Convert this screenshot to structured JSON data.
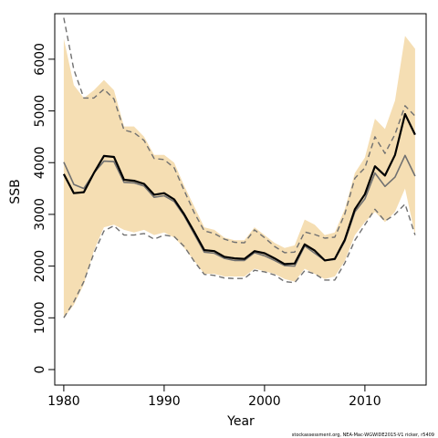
{
  "chart_data": {
    "type": "line",
    "xlabel": "Year",
    "ylabel": "SSB",
    "xlim": [
      1980,
      2015
    ],
    "ylim": [
      0,
      6800
    ],
    "xticks": [
      1980,
      1990,
      2000,
      2010
    ],
    "yticks": [
      0,
      1000,
      2000,
      3000,
      4000,
      5000,
      6000
    ],
    "grid": false,
    "footnote": "stockassessment.org, NEA-Mac-WGWIDE2015-V1 ricker, r5409",
    "colors": {
      "band": "#F5DEB3",
      "estimate": "#000000",
      "median": "#707070",
      "bounds": "#707070"
    },
    "x": [
      1980,
      1981,
      1982,
      1983,
      1984,
      1985,
      1986,
      1987,
      1988,
      1989,
      1990,
      1991,
      1992,
      1993,
      1994,
      1995,
      1996,
      1997,
      1998,
      1999,
      2000,
      2001,
      2002,
      2003,
      2004,
      2005,
      2006,
      2007,
      2008,
      2009,
      2010,
      2011,
      2012,
      2013,
      2014,
      2015
    ],
    "band_upper": [
      6400,
      5500,
      5250,
      5400,
      5600,
      5400,
      4700,
      4700,
      4500,
      4150,
      4150,
      4000,
      3550,
      3150,
      2750,
      2700,
      2550,
      2500,
      2500,
      2750,
      2600,
      2450,
      2350,
      2400,
      2900,
      2800,
      2600,
      2650,
      3100,
      3800,
      4100,
      4850,
      4650,
      5200,
      6450,
      6200
    ],
    "band_lower": [
      1000,
      1250,
      1650,
      2300,
      2750,
      2800,
      2700,
      2650,
      2700,
      2600,
      2650,
      2550,
      2350,
      2100,
      1850,
      1850,
      1800,
      1800,
      1800,
      1950,
      1900,
      1850,
      1750,
      1700,
      1950,
      1850,
      1750,
      1800,
      2100,
      2600,
      2850,
      3050,
      2850,
      3050,
      3500,
      2600
    ],
    "series": [
      {
        "name": "",
        "style": "estimate",
        "values": [
          3780,
          3410,
          3430,
          3800,
          4130,
          4110,
          3670,
          3650,
          3590,
          3380,
          3410,
          3290,
          3000,
          2660,
          2310,
          2290,
          2180,
          2150,
          2140,
          2290,
          2250,
          2150,
          2040,
          2050,
          2420,
          2300,
          2110,
          2140,
          2510,
          3100,
          3390,
          3930,
          3750,
          4150,
          4940,
          4540
        ]
      },
      {
        "name": "",
        "style": "median",
        "values": [
          4010,
          3580,
          3500,
          3800,
          4030,
          4020,
          3620,
          3610,
          3550,
          3330,
          3360,
          3250,
          2970,
          2620,
          2270,
          2250,
          2150,
          2110,
          2110,
          2260,
          2200,
          2110,
          2010,
          2000,
          2390,
          2250,
          2110,
          2130,
          2480,
          3050,
          3300,
          3800,
          3540,
          3720,
          4140,
          3740
        ]
      },
      {
        "name": "",
        "style": "bounds",
        "values": [
          6800,
          5800,
          5250,
          5250,
          5420,
          5230,
          4630,
          4580,
          4430,
          4080,
          4060,
          3900,
          3460,
          3030,
          2680,
          2630,
          2520,
          2460,
          2450,
          2700,
          2550,
          2380,
          2260,
          2270,
          2660,
          2610,
          2540,
          2560,
          3010,
          3700,
          3900,
          4500,
          4180,
          4550,
          5100,
          4900
        ]
      },
      {
        "name": "",
        "style": "bounds",
        "values": [
          1000,
          1310,
          1700,
          2250,
          2680,
          2780,
          2600,
          2600,
          2630,
          2520,
          2600,
          2570,
          2380,
          2090,
          1840,
          1820,
          1770,
          1760,
          1760,
          1920,
          1890,
          1830,
          1700,
          1680,
          1910,
          1850,
          1730,
          1730,
          2060,
          2500,
          2800,
          3100,
          2870,
          3000,
          3200,
          2600
        ]
      }
    ]
  }
}
